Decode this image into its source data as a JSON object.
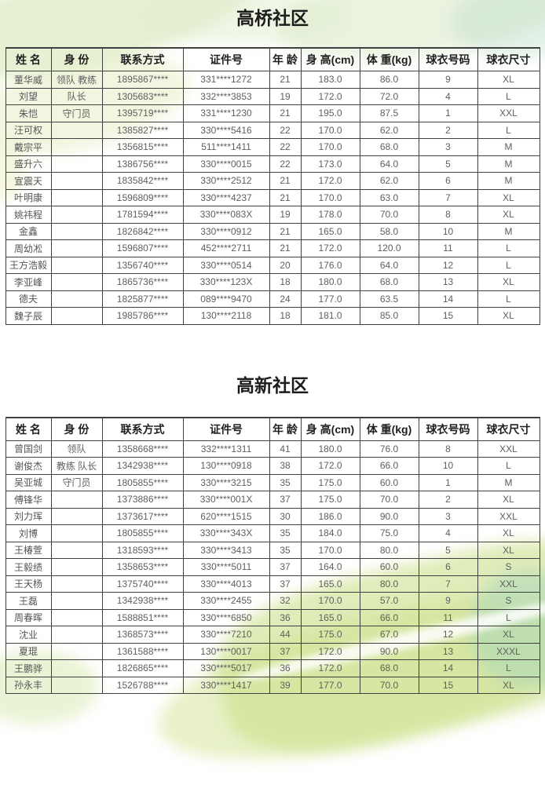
{
  "theme": {
    "border_color": "#404040",
    "header_text_color": "#1f1f1f",
    "cell_text_color": "#5f5f5f",
    "watercolor_green": "#c1d973",
    "watercolor_teal": "#a6d5bc"
  },
  "sections": [
    {
      "title": "高桥社区",
      "columns": [
        "姓 名",
        "身 份",
        "联系方式",
        "证件号",
        "年 龄",
        "身 高(cm)",
        "体 重(kg)",
        "球衣号码",
        "球衣尺寸"
      ],
      "rows": [
        [
          "董华威",
          "领队 教练",
          "1895867****",
          "331****1272",
          "21",
          "183.0",
          "86.0",
          "9",
          "XL"
        ],
        [
          "刘望",
          "队长",
          "1305683****",
          "332****3853",
          "19",
          "172.0",
          "72.0",
          "4",
          "L"
        ],
        [
          "朱恺",
          "守门员",
          "1395719****",
          "331****1230",
          "21",
          "195.0",
          "87.5",
          "1",
          "XXL"
        ],
        [
          "汪可权",
          "",
          "1385827****",
          "330****5416",
          "22",
          "170.0",
          "62.0",
          "2",
          "L"
        ],
        [
          "戴宗平",
          "",
          "1356815****",
          "511****1411",
          "22",
          "170.0",
          "68.0",
          "3",
          "M"
        ],
        [
          "盛升六",
          "",
          "1386756****",
          "330****0015",
          "22",
          "173.0",
          "64.0",
          "5",
          "M"
        ],
        [
          "宣震天",
          "",
          "1835842****",
          "330****2512",
          "21",
          "172.0",
          "62.0",
          "6",
          "M"
        ],
        [
          "叶明康",
          "",
          "1596809****",
          "330****4237",
          "21",
          "170.0",
          "63.0",
          "7",
          "XL"
        ],
        [
          "姚祎程",
          "",
          "1781594****",
          "330****083X",
          "19",
          "178.0",
          "70.0",
          "8",
          "XL"
        ],
        [
          "金鑫",
          "",
          "1826842****",
          "330****0912",
          "21",
          "165.0",
          "58.0",
          "10",
          "M"
        ],
        [
          "周幼凇",
          "",
          "1596807****",
          "452****2711",
          "21",
          "172.0",
          "120.0",
          "11",
          "L"
        ],
        [
          "王方浩毅",
          "",
          "1356740****",
          "330****0514",
          "20",
          "176.0",
          "64.0",
          "12",
          "L"
        ],
        [
          "李亚峰",
          "",
          "1865736****",
          "330****123X",
          "18",
          "180.0",
          "68.0",
          "13",
          "XL"
        ],
        [
          "德夫",
          "",
          "1825877****",
          "089****9470",
          "24",
          "177.0",
          "63.5",
          "14",
          "L"
        ],
        [
          "魏子辰",
          "",
          "1985786****",
          "130****2118",
          "18",
          "181.0",
          "85.0",
          "15",
          "XL"
        ]
      ]
    },
    {
      "title": "高新社区",
      "columns": [
        "姓 名",
        "身 份",
        "联系方式",
        "证件号",
        "年 龄",
        "身 高(cm)",
        "体 重(kg)",
        "球衣号码",
        "球衣尺寸"
      ],
      "rows": [
        [
          "曾国剑",
          "领队",
          "1358668****",
          "332****1311",
          "41",
          "180.0",
          "76.0",
          "8",
          "XXL"
        ],
        [
          "谢俊杰",
          "教练 队长",
          "1342938****",
          "130****0918",
          "38",
          "172.0",
          "66.0",
          "10",
          "L"
        ],
        [
          "吴亚城",
          "守门员",
          "1805855****",
          "330****3215",
          "35",
          "175.0",
          "60.0",
          "1",
          "M"
        ],
        [
          "傅锋华",
          "",
          "1373886****",
          "330****001X",
          "37",
          "175.0",
          "70.0",
          "2",
          "XL"
        ],
        [
          "刘力珲",
          "",
          "1373617****",
          "620****1515",
          "30",
          "186.0",
          "90.0",
          "3",
          "XXL"
        ],
        [
          "刘博",
          "",
          "1805855****",
          "330****343X",
          "35",
          "184.0",
          "75.0",
          "4",
          "XL"
        ],
        [
          "王椿萱",
          "",
          "1318593****",
          "330****3413",
          "35",
          "170.0",
          "80.0",
          "5",
          "XL"
        ],
        [
          "王毅绩",
          "",
          "1358653****",
          "330****5011",
          "37",
          "164.0",
          "60.0",
          "6",
          "S"
        ],
        [
          "王天杨",
          "",
          "1375740****",
          "330****4013",
          "37",
          "165.0",
          "80.0",
          "7",
          "XXL"
        ],
        [
          "王磊",
          "",
          "1342938****",
          "330****2455",
          "32",
          "170.0",
          "57.0",
          "9",
          "S"
        ],
        [
          "周春晖",
          "",
          "1588851****",
          "330****6850",
          "36",
          "165.0",
          "66.0",
          "11",
          "L"
        ],
        [
          "沈业",
          "",
          "1368573****",
          "330****7210",
          "44",
          "175.0",
          "67.0",
          "12",
          "XL"
        ],
        [
          "夏琨",
          "",
          "1361588****",
          "130****0017",
          "37",
          "172.0",
          "90.0",
          "13",
          "XXXL"
        ],
        [
          "王鹏骅",
          "",
          "1826865****",
          "330****5017",
          "36",
          "172.0",
          "68.0",
          "14",
          "L"
        ],
        [
          "孙永丰",
          "",
          "1526788****",
          "330****1417",
          "39",
          "177.0",
          "70.0",
          "15",
          "XL"
        ]
      ]
    }
  ]
}
